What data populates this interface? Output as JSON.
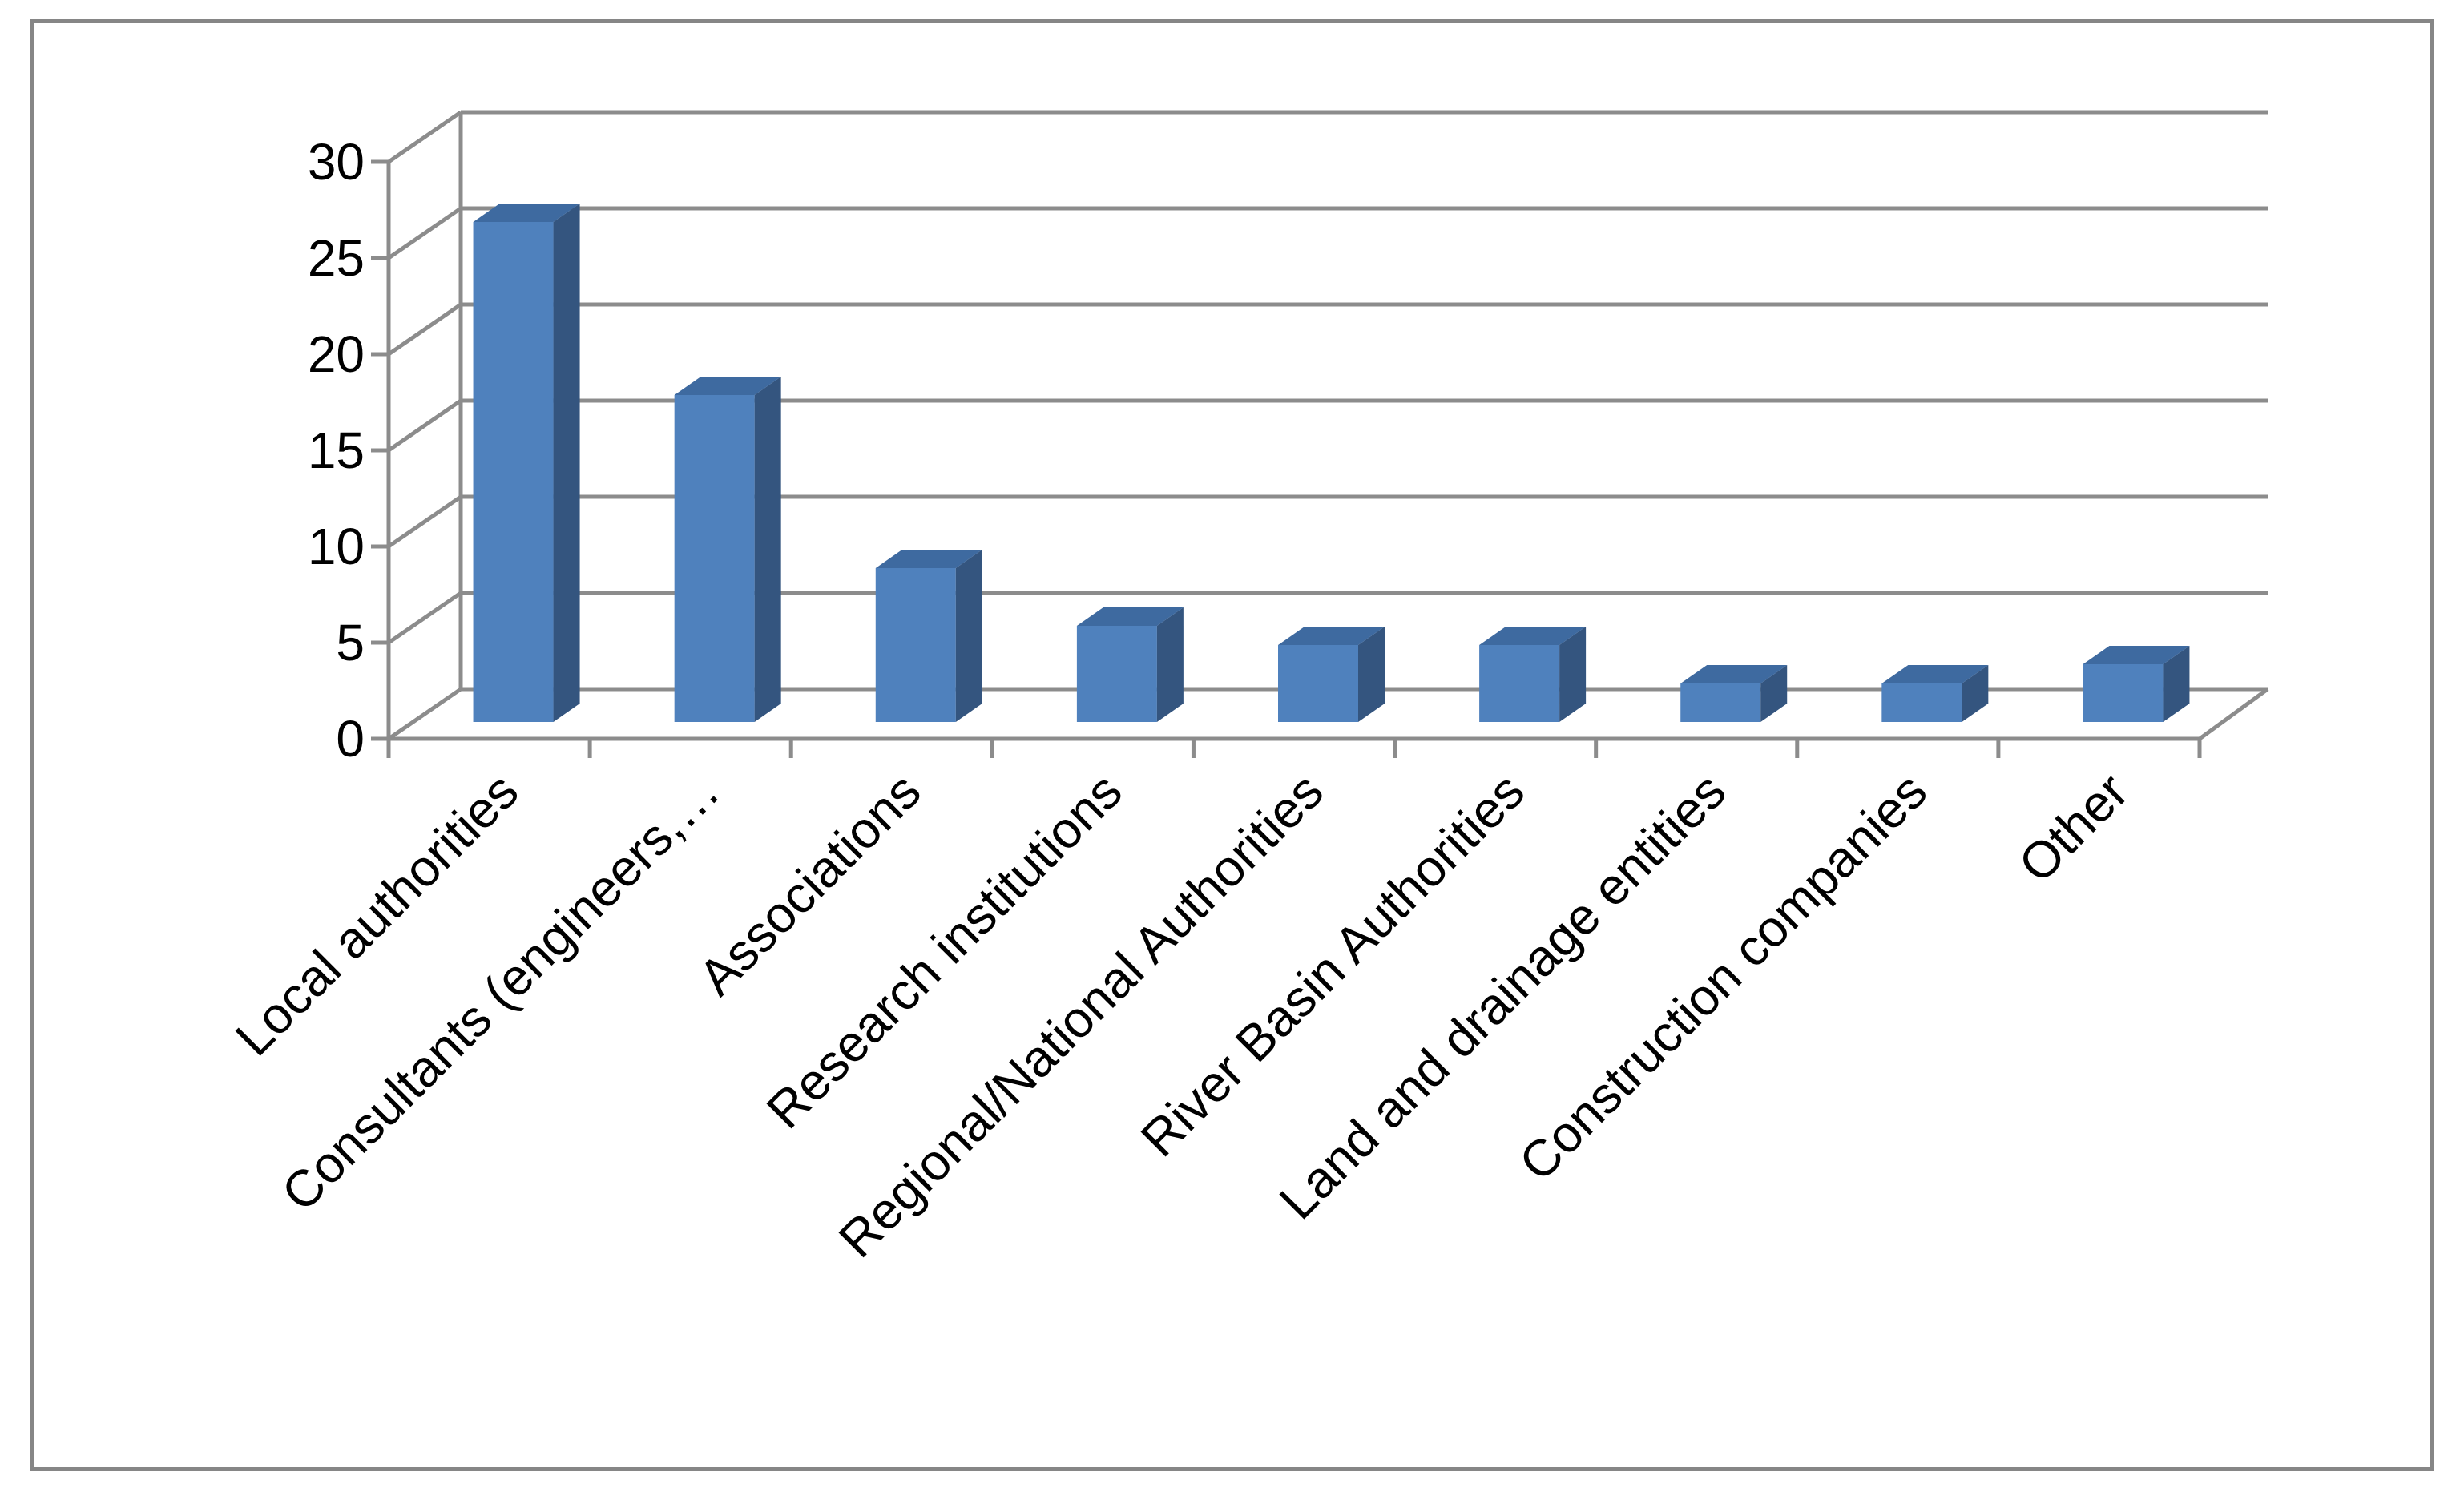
{
  "chart_data": {
    "type": "bar",
    "style": "3d-column",
    "categories": [
      "Local authorities",
      "Consultants (engineers,…",
      "Associations",
      "Research institutions",
      "Regional/National Authorities",
      "River Basin Authorities",
      "Land and drainage entities",
      "Construction companies",
      "Other"
    ],
    "values": [
      26,
      17,
      8,
      5,
      4,
      4,
      2,
      2,
      3
    ],
    "yticks": [
      "0",
      "5",
      "10",
      "15",
      "20",
      "25",
      "30"
    ],
    "ylim": [
      0,
      30
    ],
    "grid": true,
    "legend": "none",
    "colors": {
      "bar_front": "#4f81bd",
      "bar_side": "#34557f",
      "bar_top": "#3e6aa0",
      "grid": "#8c8c8c",
      "frame": "#868686"
    }
  }
}
